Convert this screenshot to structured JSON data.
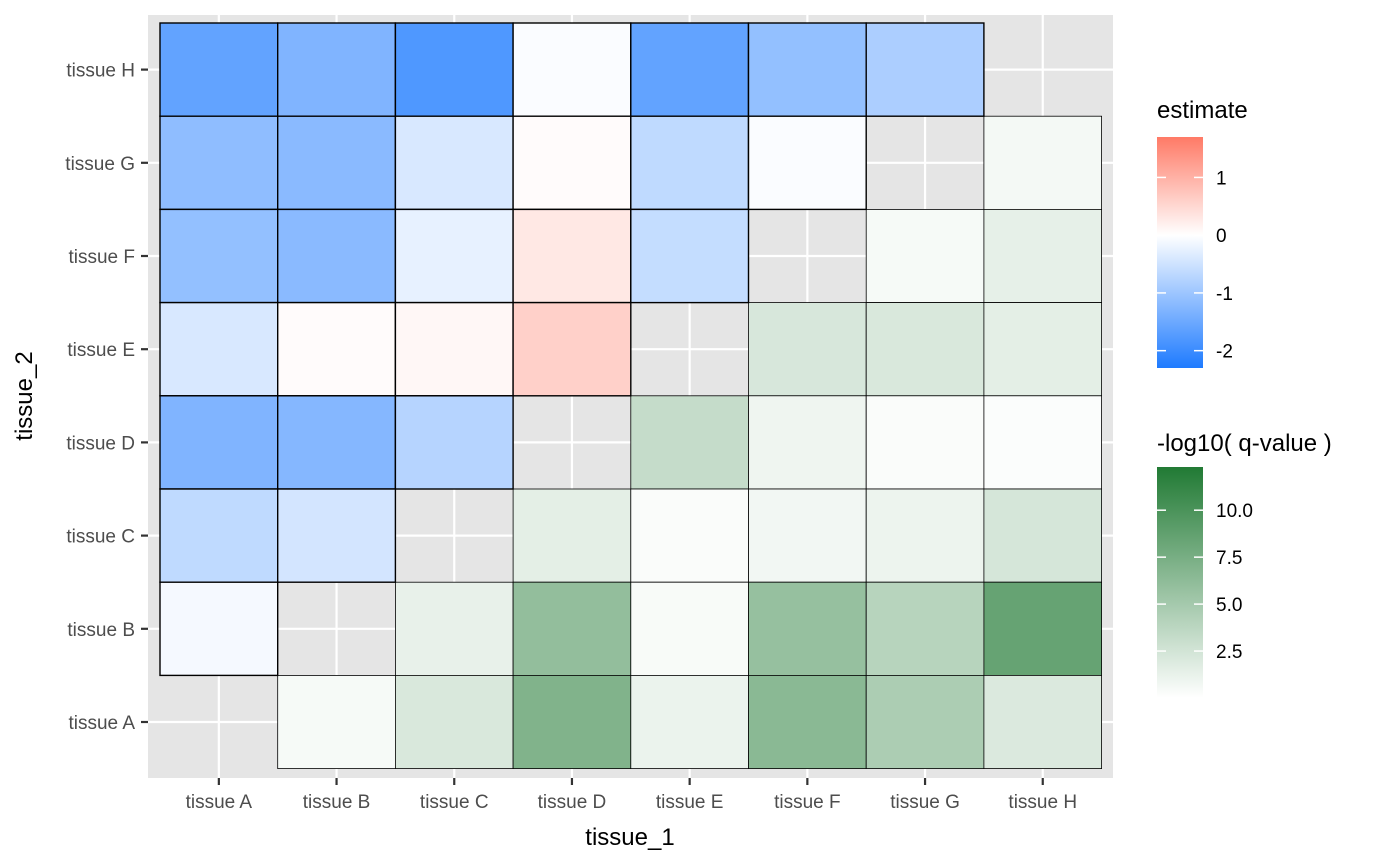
{
  "chart_data": {
    "type": "heatmap",
    "xlabel": "tissue_1",
    "ylabel": "tissue_2",
    "x_categories": [
      "tissue A",
      "tissue B",
      "tissue C",
      "tissue D",
      "tissue E",
      "tissue F",
      "tissue G",
      "tissue H"
    ],
    "y_categories": [
      "tissue A",
      "tissue B",
      "tissue C",
      "tissue D",
      "tissue E",
      "tissue F",
      "tissue G",
      "tissue H"
    ],
    "grid": true,
    "legend_placement": "right",
    "estimate_legend": {
      "title": "estimate",
      "range": [
        -2.3,
        1.7
      ],
      "breaks": [
        1,
        0,
        -1,
        -2
      ],
      "break_labels": [
        "1",
        "0",
        "-1",
        "-2"
      ],
      "low_color": "#1E7BFF",
      "mid_color": "#FFFFFF",
      "high_color": "#FF7A66"
    },
    "qvalue_legend": {
      "title": "-log10( q-value )",
      "range": [
        0,
        12.3
      ],
      "breaks": [
        10.0,
        7.5,
        5.0,
        2.5
      ],
      "break_labels": [
        "10.0",
        "7.5",
        "5.0",
        "2.5"
      ],
      "low_color": "#FFFFFF",
      "high_color": "#217A34"
    },
    "estimate_cells": [
      {
        "x": "tissue A",
        "y": "tissue H",
        "value": -1.6
      },
      {
        "x": "tissue B",
        "y": "tissue H",
        "value": -1.3
      },
      {
        "x": "tissue C",
        "y": "tissue H",
        "value": -1.8
      },
      {
        "x": "tissue D",
        "y": "tissue H",
        "value": -0.05
      },
      {
        "x": "tissue E",
        "y": "tissue H",
        "value": -1.6
      },
      {
        "x": "tissue F",
        "y": "tissue H",
        "value": -1.1
      },
      {
        "x": "tissue G",
        "y": "tissue H",
        "value": -0.85
      },
      {
        "x": "tissue A",
        "y": "tissue G",
        "value": -1.15
      },
      {
        "x": "tissue B",
        "y": "tissue G",
        "value": -1.2
      },
      {
        "x": "tissue C",
        "y": "tissue G",
        "value": -0.4
      },
      {
        "x": "tissue D",
        "y": "tissue G",
        "value": 0.05
      },
      {
        "x": "tissue E",
        "y": "tissue G",
        "value": -0.65
      },
      {
        "x": "tissue F",
        "y": "tissue G",
        "value": -0.05
      },
      {
        "x": "tissue A",
        "y": "tissue F",
        "value": -1.1
      },
      {
        "x": "tissue B",
        "y": "tissue F",
        "value": -1.2
      },
      {
        "x": "tissue C",
        "y": "tissue F",
        "value": -0.25
      },
      {
        "x": "tissue D",
        "y": "tissue F",
        "value": 0.3
      },
      {
        "x": "tissue E",
        "y": "tissue F",
        "value": -0.6
      },
      {
        "x": "tissue A",
        "y": "tissue E",
        "value": -0.4
      },
      {
        "x": "tissue B",
        "y": "tissue E",
        "value": 0.05
      },
      {
        "x": "tissue C",
        "y": "tissue E",
        "value": 0.1
      },
      {
        "x": "tissue D",
        "y": "tissue E",
        "value": 0.6
      },
      {
        "x": "tissue A",
        "y": "tissue D",
        "value": -1.3
      },
      {
        "x": "tissue B",
        "y": "tissue D",
        "value": -1.25
      },
      {
        "x": "tissue C",
        "y": "tissue D",
        "value": -0.75
      },
      {
        "x": "tissue A",
        "y": "tissue C",
        "value": -0.65
      },
      {
        "x": "tissue B",
        "y": "tissue C",
        "value": -0.45
      },
      {
        "x": "tissue A",
        "y": "tissue B",
        "value": -0.1
      }
    ],
    "qvalue_cells": [
      {
        "x": "tissue H",
        "y": "tissue G",
        "value": 0.6
      },
      {
        "x": "tissue G",
        "y": "tissue F",
        "value": 0.5
      },
      {
        "x": "tissue H",
        "y": "tissue F",
        "value": 1.4
      },
      {
        "x": "tissue F",
        "y": "tissue E",
        "value": 2.2
      },
      {
        "x": "tissue G",
        "y": "tissue E",
        "value": 2.1
      },
      {
        "x": "tissue H",
        "y": "tissue E",
        "value": 1.5
      },
      {
        "x": "tissue E",
        "y": "tissue D",
        "value": 3.2
      },
      {
        "x": "tissue F",
        "y": "tissue D",
        "value": 0.9
      },
      {
        "x": "tissue G",
        "y": "tissue D",
        "value": 0.3
      },
      {
        "x": "tissue H",
        "y": "tissue D",
        "value": 0.2
      },
      {
        "x": "tissue D",
        "y": "tissue C",
        "value": 1.5
      },
      {
        "x": "tissue E",
        "y": "tissue C",
        "value": 0.3
      },
      {
        "x": "tissue F",
        "y": "tissue C",
        "value": 0.7
      },
      {
        "x": "tissue G",
        "y": "tissue C",
        "value": 1.0
      },
      {
        "x": "tissue H",
        "y": "tissue C",
        "value": 2.3
      },
      {
        "x": "tissue C",
        "y": "tissue B",
        "value": 1.3
      },
      {
        "x": "tissue D",
        "y": "tissue B",
        "value": 6.0
      },
      {
        "x": "tissue E",
        "y": "tissue B",
        "value": 0.4
      },
      {
        "x": "tissue F",
        "y": "tissue B",
        "value": 5.8
      },
      {
        "x": "tissue G",
        "y": "tissue B",
        "value": 4.0
      },
      {
        "x": "tissue H",
        "y": "tissue B",
        "value": 8.5
      },
      {
        "x": "tissue B",
        "y": "tissue A",
        "value": 0.5
      },
      {
        "x": "tissue C",
        "y": "tissue A",
        "value": 2.1
      },
      {
        "x": "tissue D",
        "y": "tissue A",
        "value": 7.0
      },
      {
        "x": "tissue E",
        "y": "tissue A",
        "value": 1.1
      },
      {
        "x": "tissue F",
        "y": "tissue A",
        "value": 6.5
      },
      {
        "x": "tissue G",
        "y": "tissue A",
        "value": 4.6
      },
      {
        "x": "tissue H",
        "y": "tissue A",
        "value": 2.0
      }
    ]
  },
  "colors": {
    "panel_background": "#E5E5E5",
    "grid_line": "#FFFFFF",
    "tick_text": "#4D4D4D",
    "tick_mark": "#333333",
    "cell_border": "#000000"
  }
}
